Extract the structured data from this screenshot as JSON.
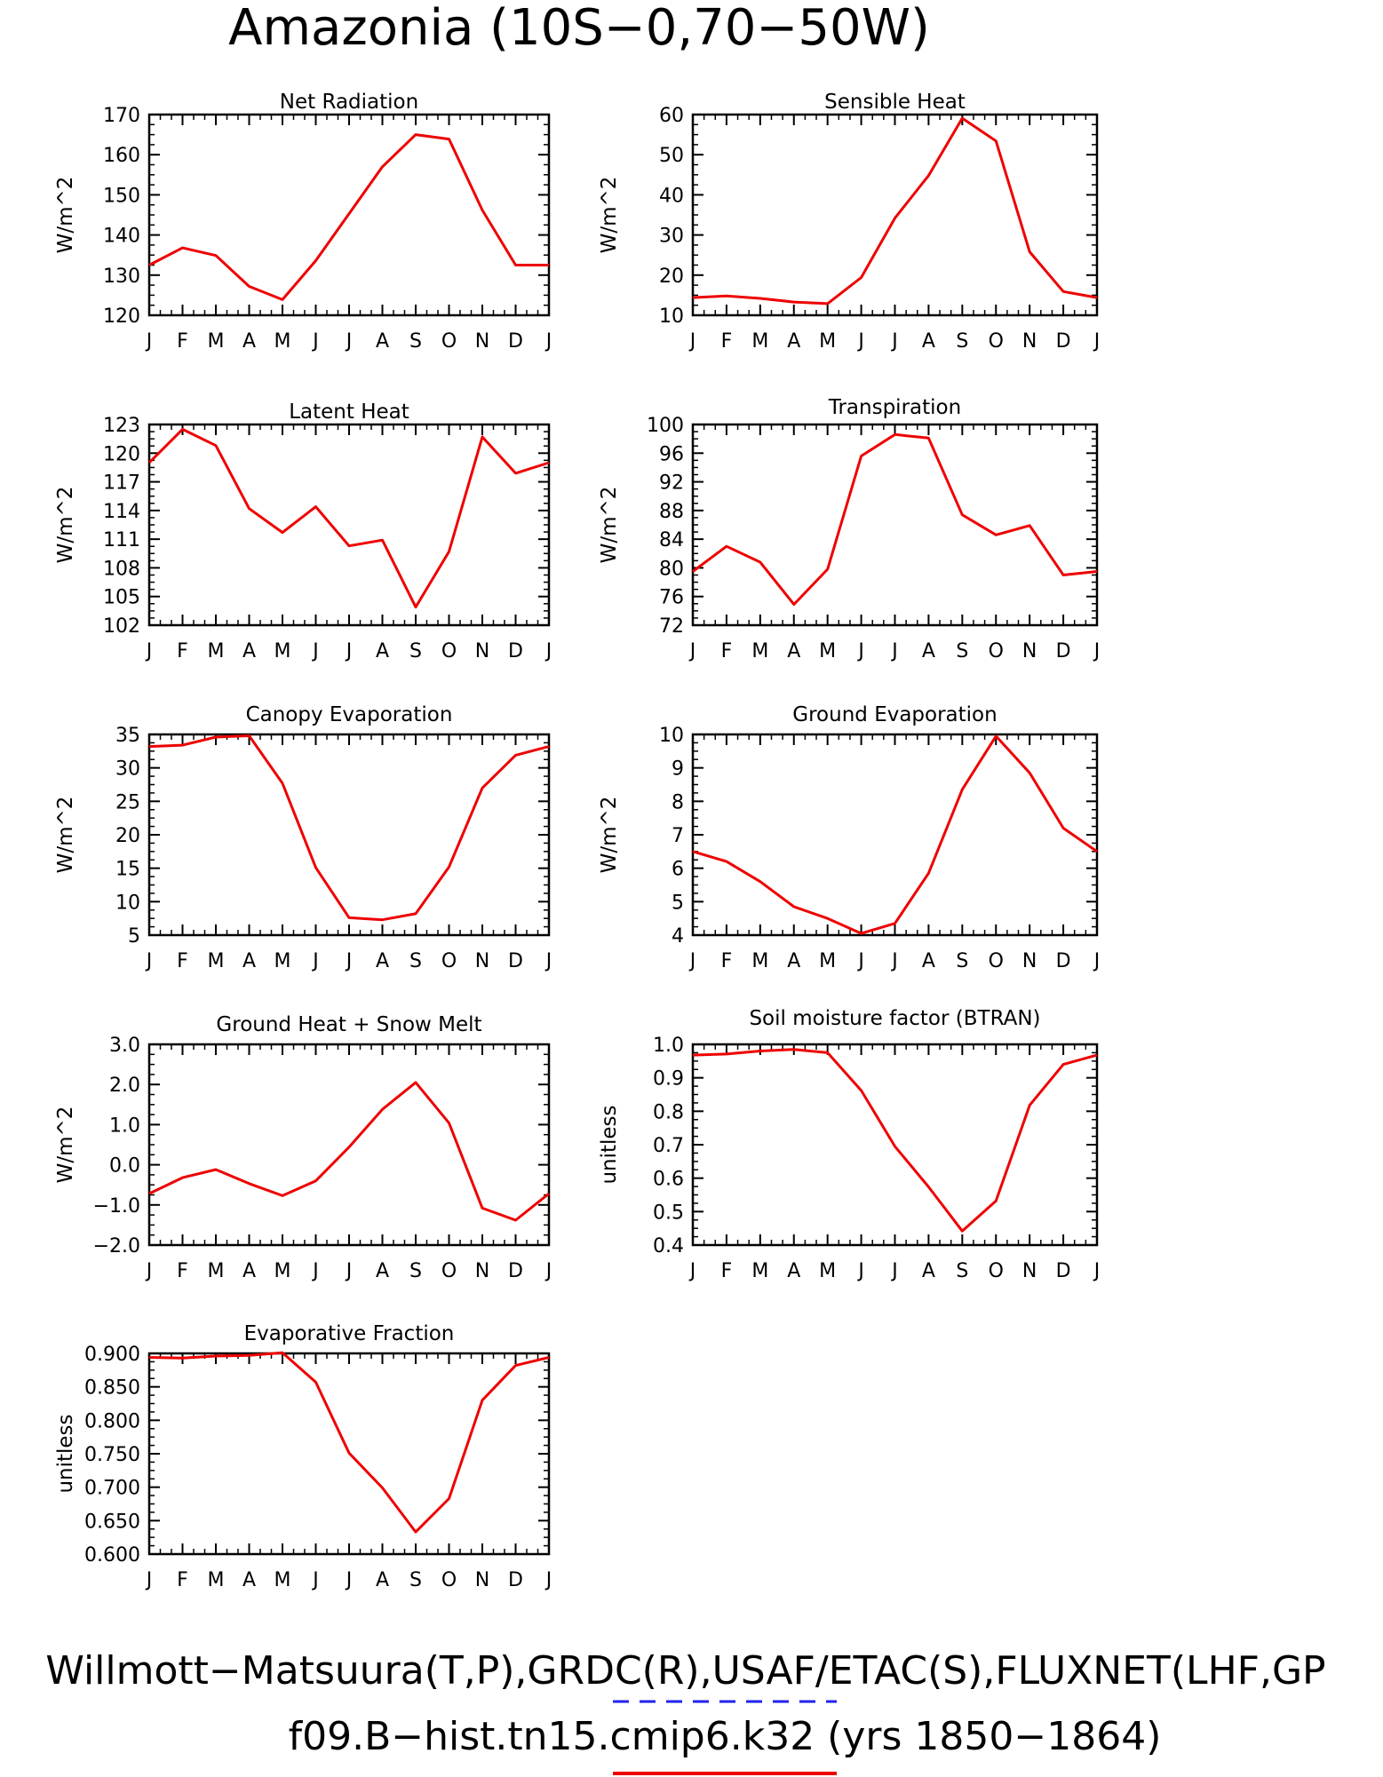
{
  "figure": {
    "title": "Amazonia (10S−0,70−50W)",
    "footer_line1": "Willmott−Matsuura(T,P),GRDC(R),USAF/ETAC(S),FLUXNET(LHF,GP",
    "footer_line2": "f09.B−hist.tn15.cmip6.k32 (yrs 1850−1864)",
    "line_color": "#ee0000",
    "obs_legend_color": "#2222ee"
  },
  "chart_data": [
    {
      "type": "line",
      "title": "Net Radiation",
      "ylabel": "W/m^2",
      "categories": [
        "J",
        "F",
        "M",
        "A",
        "M",
        "J",
        "J",
        "A",
        "S",
        "O",
        "N",
        "D",
        "J"
      ],
      "ylim": [
        120,
        170
      ],
      "yticks": [
        "120",
        "130",
        "140",
        "150",
        "160",
        "170"
      ],
      "values": [
        132.5,
        136.8,
        134.9,
        127.2,
        123.9,
        133.6,
        145.3,
        157.0,
        165.0,
        163.9,
        146.2,
        132.5,
        132.5
      ],
      "grid": false
    },
    {
      "type": "line",
      "title": "Sensible Heat",
      "ylabel": "W/m^2",
      "categories": [
        "J",
        "F",
        "M",
        "A",
        "M",
        "J",
        "J",
        "A",
        "S",
        "O",
        "N",
        "D",
        "J"
      ],
      "ylim": [
        10,
        60
      ],
      "yticks": [
        "10",
        "20",
        "30",
        "40",
        "50",
        "60"
      ],
      "values": [
        14.4,
        14.8,
        14.2,
        13.3,
        12.9,
        19.4,
        34.2,
        44.8,
        59.1,
        53.4,
        25.8,
        15.9,
        14.4
      ],
      "grid": false
    },
    {
      "type": "line",
      "title": "Latent Heat",
      "ylabel": "W/m^2",
      "categories": [
        "J",
        "F",
        "M",
        "A",
        "M",
        "J",
        "J",
        "A",
        "S",
        "O",
        "N",
        "D",
        "J"
      ],
      "ylim": [
        102,
        123
      ],
      "yticks": [
        "102",
        "105",
        "108",
        "111",
        "114",
        "117",
        "120",
        "123"
      ],
      "values": [
        119.0,
        122.5,
        120.8,
        114.2,
        111.7,
        114.4,
        110.3,
        110.9,
        103.9,
        109.7,
        121.7,
        117.9,
        119.0
      ],
      "grid": false
    },
    {
      "type": "line",
      "title": "Transpiration",
      "ylabel": "W/m^2",
      "categories": [
        "J",
        "F",
        "M",
        "A",
        "M",
        "J",
        "J",
        "A",
        "S",
        "O",
        "N",
        "D",
        "J"
      ],
      "ylim": [
        72,
        100
      ],
      "yticks": [
        "72",
        "76",
        "80",
        "84",
        "88",
        "92",
        "96",
        "100"
      ],
      "values": [
        79.5,
        83.0,
        80.8,
        74.9,
        79.8,
        95.6,
        98.6,
        98.1,
        87.4,
        84.6,
        85.9,
        79.0,
        79.5
      ],
      "grid": false
    },
    {
      "type": "line",
      "title": "Canopy Evaporation",
      "ylabel": "W/m^2",
      "categories": [
        "J",
        "F",
        "M",
        "A",
        "M",
        "J",
        "J",
        "A",
        "S",
        "O",
        "N",
        "D",
        "J"
      ],
      "ylim": [
        5,
        35
      ],
      "yticks": [
        "5",
        "10",
        "15",
        "20",
        "25",
        "30",
        "35"
      ],
      "values": [
        33.2,
        33.4,
        34.6,
        34.8,
        27.7,
        15.1,
        7.6,
        7.3,
        8.2,
        15.2,
        27.0,
        31.9,
        33.2
      ],
      "grid": false
    },
    {
      "type": "line",
      "title": "Ground Evaporation",
      "ylabel": "W/m^2",
      "categories": [
        "J",
        "F",
        "M",
        "A",
        "M",
        "J",
        "J",
        "A",
        "S",
        "O",
        "N",
        "D",
        "J"
      ],
      "ylim": [
        4,
        10
      ],
      "yticks": [
        "4",
        "5",
        "6",
        "7",
        "8",
        "9",
        "10"
      ],
      "values": [
        6.5,
        6.2,
        5.6,
        4.85,
        4.5,
        4.05,
        4.35,
        5.85,
        8.35,
        9.95,
        8.85,
        7.2,
        6.5
      ],
      "grid": false
    },
    {
      "type": "line",
      "title": "Ground Heat + Snow Melt",
      "ylabel": "W/m^2",
      "categories": [
        "J",
        "F",
        "M",
        "A",
        "M",
        "J",
        "J",
        "A",
        "S",
        "O",
        "N",
        "D",
        "J"
      ],
      "ylim": [
        -2.0,
        3.0
      ],
      "yticks": [
        "−2.0",
        "−1.0",
        "0.0",
        "1.0",
        "2.0",
        "3.0"
      ],
      "values": [
        -0.72,
        -0.32,
        -0.12,
        -0.47,
        -0.77,
        -0.4,
        0.44,
        1.38,
        2.05,
        1.04,
        -1.08,
        -1.38,
        -0.72
      ],
      "grid": false
    },
    {
      "type": "line",
      "title": "Soil moisture factor (BTRAN)",
      "ylabel": "unitless",
      "categories": [
        "J",
        "F",
        "M",
        "A",
        "M",
        "J",
        "J",
        "A",
        "S",
        "O",
        "N",
        "D",
        "J"
      ],
      "ylim": [
        0.4,
        1.0
      ],
      "yticks": [
        "0.4",
        "0.5",
        "0.6",
        "0.7",
        "0.8",
        "0.9",
        "1.0"
      ],
      "values": [
        0.968,
        0.971,
        0.98,
        0.985,
        0.975,
        0.862,
        0.695,
        0.574,
        0.442,
        0.532,
        0.818,
        0.94,
        0.968
      ],
      "grid": false
    },
    {
      "type": "line",
      "title": "Evaporative Fraction",
      "ylabel": "unitless",
      "categories": [
        "J",
        "F",
        "M",
        "A",
        "M",
        "J",
        "J",
        "A",
        "S",
        "O",
        "N",
        "D",
        "J"
      ],
      "ylim": [
        0.6,
        0.9
      ],
      "yticks": [
        "0.600",
        "0.650",
        "0.700",
        "0.750",
        "0.800",
        "0.850",
        "0.900"
      ],
      "values": [
        0.894,
        0.893,
        0.896,
        0.897,
        0.901,
        0.857,
        0.751,
        0.699,
        0.633,
        0.683,
        0.83,
        0.882,
        0.894
      ],
      "grid": false
    }
  ]
}
